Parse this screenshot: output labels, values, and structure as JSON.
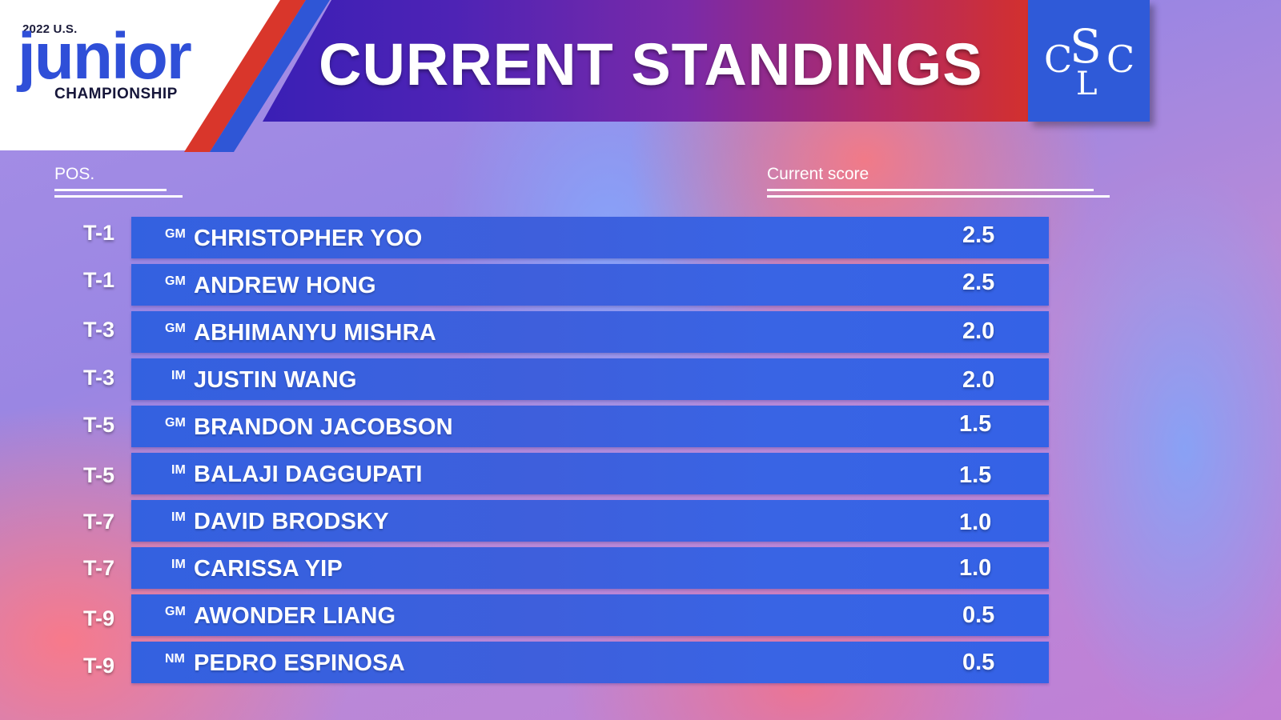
{
  "logo": {
    "year_text": "2022 U.S.",
    "word": "junior",
    "subtitle": "CHAMPIONSHIP"
  },
  "header": {
    "title": "CURRENT STANDINGS",
    "club_logo_text": "CSLC"
  },
  "columns": {
    "position": "POS.",
    "score": "Current score"
  },
  "standings": [
    {
      "pos": "T-1",
      "title": "GM",
      "name": "CHRISTOPHER YOO",
      "score": "2.5"
    },
    {
      "pos": "T-1",
      "title": "GM",
      "name": "ANDREW HONG",
      "score": "2.5"
    },
    {
      "pos": "T-3",
      "title": "GM",
      "name": "ABHIMANYU MISHRA",
      "score": "2.0"
    },
    {
      "pos": "T-3",
      "title": "IM",
      "name": "JUSTIN WANG",
      "score": "2.0"
    },
    {
      "pos": "T-5",
      "title": "GM",
      "name": "BRANDON JACOBSON",
      "score": "1.5"
    },
    {
      "pos": "T-5",
      "title": "IM",
      "name": "BALAJI DAGGUPATI",
      "score": "1.5"
    },
    {
      "pos": "T-7",
      "title": "IM",
      "name": "DAVID BRODSKY",
      "score": "1.0"
    },
    {
      "pos": "T-7",
      "title": "IM",
      "name": "CARISSA YIP",
      "score": "1.0"
    },
    {
      "pos": "T-9",
      "title": "GM",
      "name": "AWONDER LIANG",
      "score": "0.5"
    },
    {
      "pos": "T-9",
      "title": "NM",
      "name": "PEDRO ESPINOSA",
      "score": "0.5"
    }
  ],
  "colors": {
    "row_blue": "#3a60de",
    "brand_blue": "#2f56d6",
    "brand_red": "#d9362b"
  }
}
